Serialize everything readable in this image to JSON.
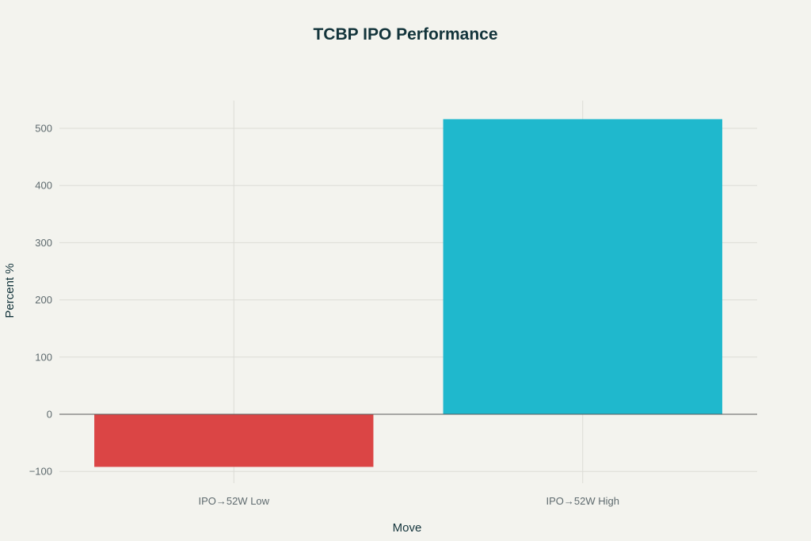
{
  "chart_data": {
    "type": "bar",
    "title": "TCBP IPO Performance",
    "xlabel": "Move",
    "ylabel": "Percent %",
    "categories": [
      "IPO→52W Low",
      "IPO→52W High"
    ],
    "values": [
      -92,
      516
    ],
    "colors": [
      "#db4545",
      "#1fb8cd"
    ],
    "ylim": [
      -110,
      550
    ],
    "yticks": [
      -100,
      0,
      100,
      200,
      300,
      400,
      500
    ],
    "ytick_labels": [
      "−100",
      "0",
      "100",
      "200",
      "300",
      "400",
      "500"
    ],
    "grid": true,
    "legend": "none"
  },
  "colors": {
    "background": "#f3f3ee",
    "grid": "#dcdcd6",
    "zero_line": "#5a5a5a",
    "title": "#13343b",
    "tick_text": "#5e6a6e"
  }
}
